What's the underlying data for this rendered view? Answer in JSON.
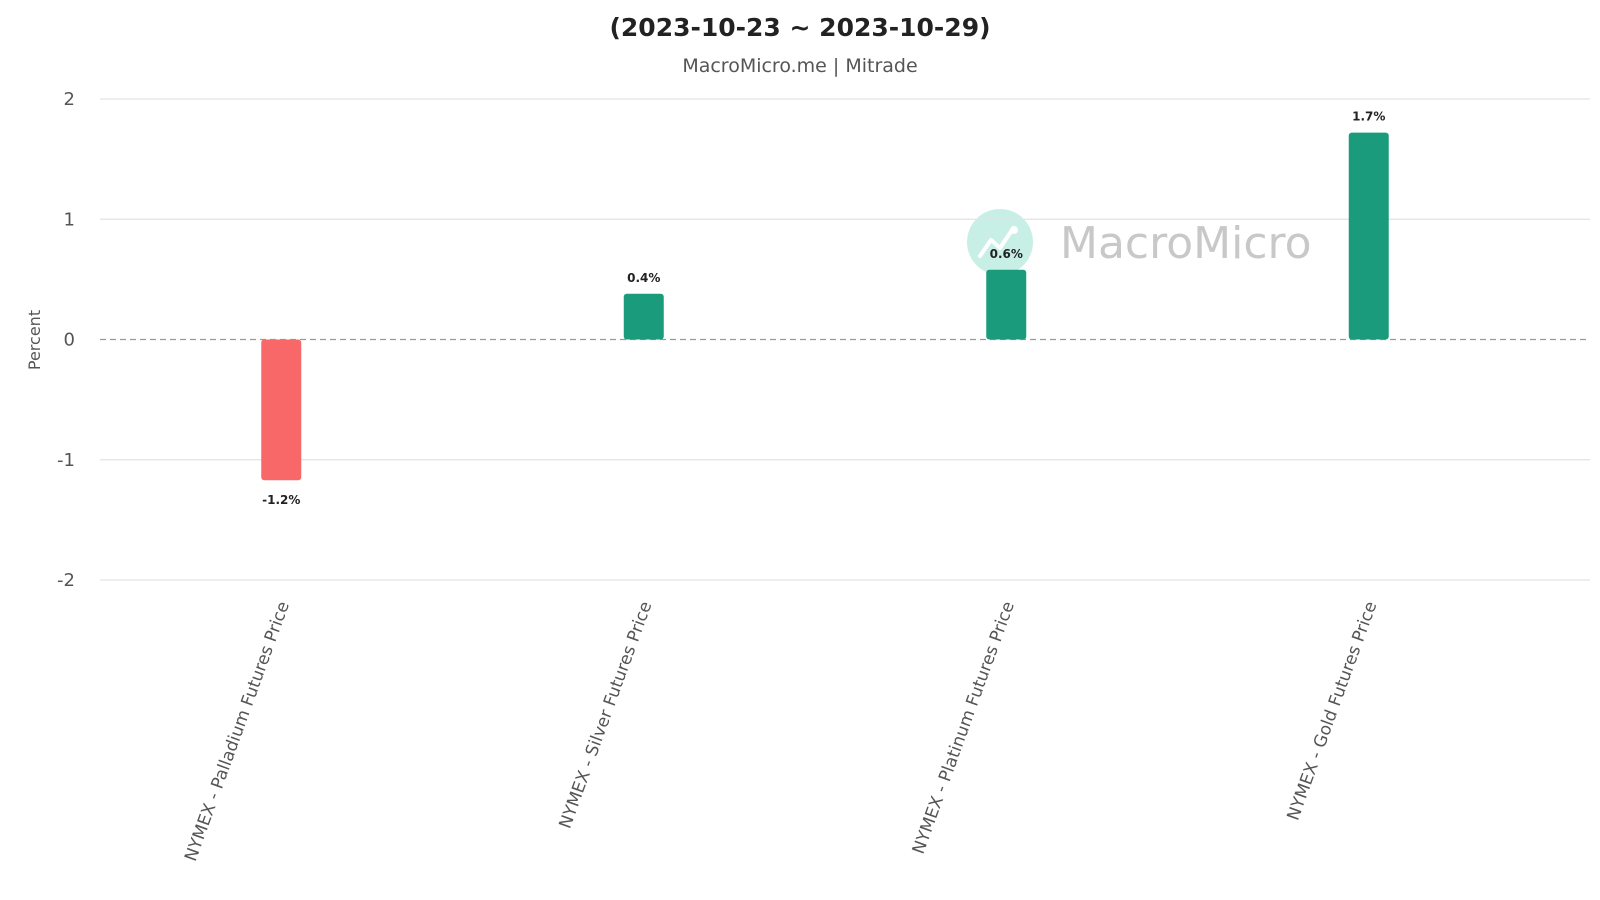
{
  "colors": {
    "positive": "#1a9c7c",
    "negative": "#f86868",
    "grid": "#e3e3e3",
    "zero_line": "#9a9a9a",
    "watermark": "#c7efe6"
  },
  "watermark": {
    "text": "MacroMicro",
    "icon": "trend-line-icon"
  },
  "chart_data": {
    "type": "bar",
    "title": "(2023-10-23 ~ 2023-10-29)",
    "subtitle": "MacroMicro.me | Mitrade",
    "xlabel": "",
    "ylabel": "Percent",
    "ylim": [
      -2,
      2
    ],
    "yticks": [
      2,
      1,
      0,
      -1,
      -2
    ],
    "grid": true,
    "categories": [
      "NYMEX - Palladium Futures Price",
      "NYMEX - Silver Futures Price",
      "NYMEX - Platinum Futures Price",
      "NYMEX - Gold Futures Price"
    ],
    "values": [
      -1.17,
      0.38,
      0.58,
      1.72
    ],
    "data_labels": [
      "-1.2%",
      "0.4%",
      "0.6%",
      "1.7%"
    ]
  }
}
